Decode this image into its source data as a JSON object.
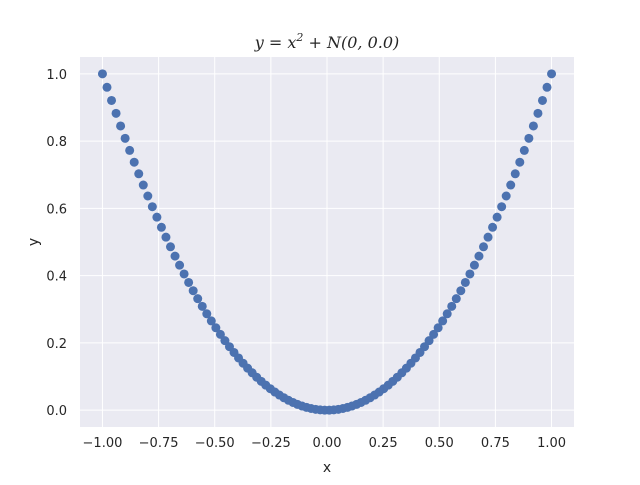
{
  "chart_data": {
    "type": "scatter",
    "title": "y = x",
    "title_sup": "2",
    "title_rest": " + N(0, 0.0)",
    "xlabel": "x",
    "ylabel": "y",
    "xlim": [
      -1.1,
      1.1
    ],
    "ylim": [
      -0.05,
      1.05
    ],
    "xticks": [
      -1.0,
      -0.75,
      -0.5,
      -0.25,
      0.0,
      0.25,
      0.5,
      0.75,
      1.0
    ],
    "xtick_labels": [
      "−1.00",
      "−0.75",
      "−0.50",
      "−0.25",
      "0.00",
      "0.25",
      "0.50",
      "0.75",
      "1.00"
    ],
    "yticks": [
      0.0,
      0.2,
      0.4,
      0.6,
      0.8,
      1.0
    ],
    "ytick_labels": [
      "0.0",
      "0.2",
      "0.4",
      "0.6",
      "0.8",
      "1.0"
    ],
    "grid": true,
    "x_range": [
      -1.0,
      1.0
    ],
    "n_points": 100,
    "function": "y = x^2",
    "colors": {
      "background": "#eaeaf2",
      "grid": "#ffffff",
      "marker": "#4c72b0"
    }
  }
}
